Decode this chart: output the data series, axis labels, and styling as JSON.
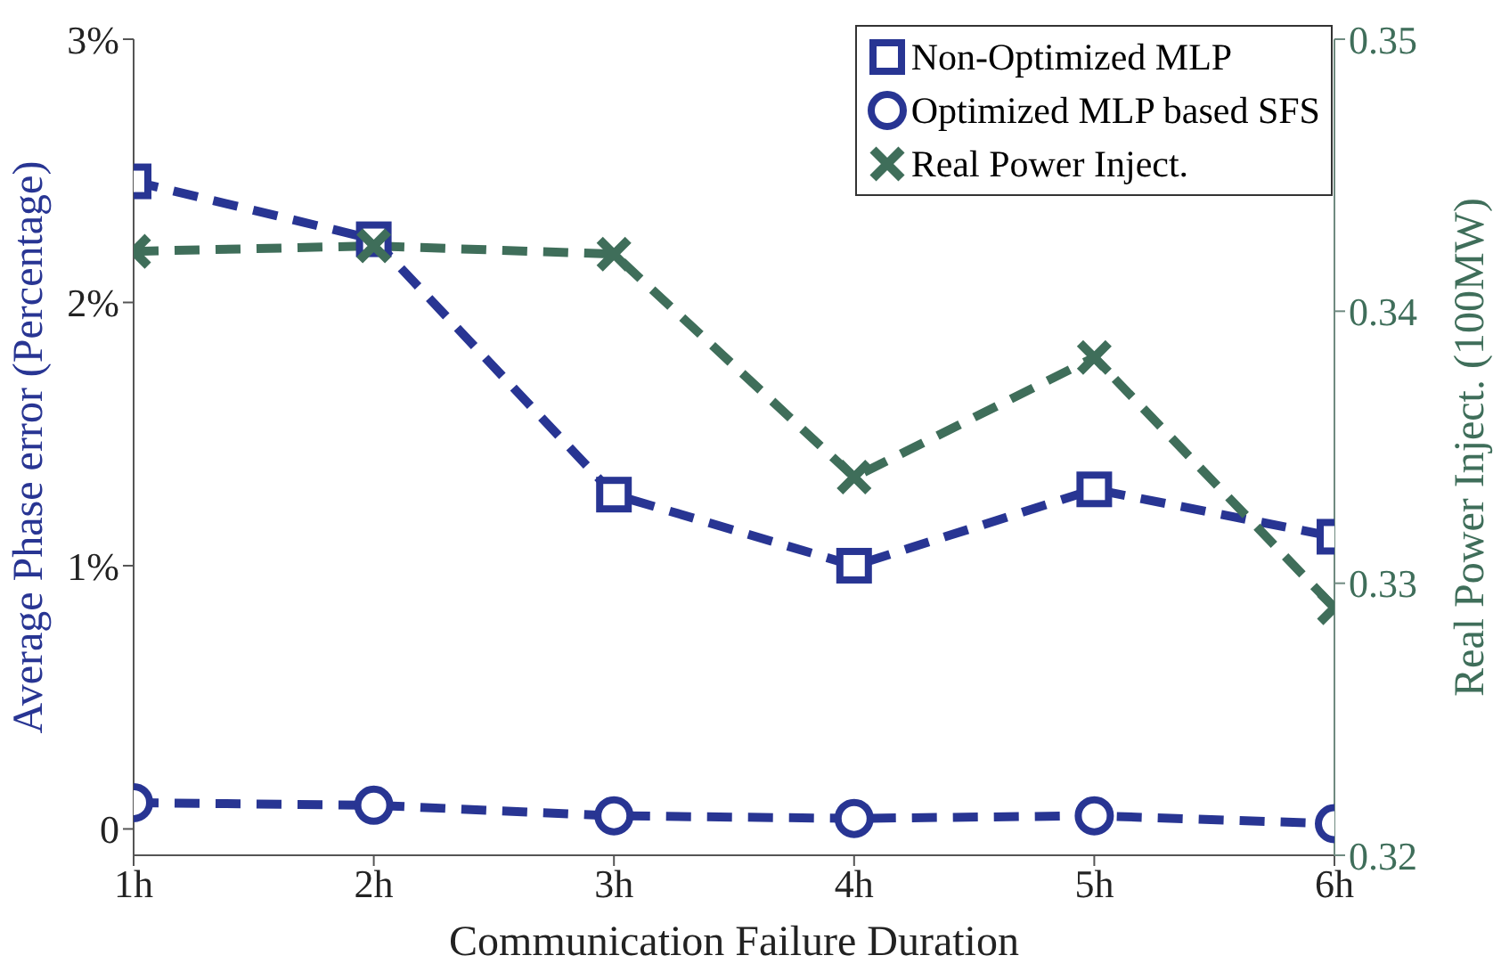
{
  "chart_data": {
    "type": "line",
    "xlabel": "Communication Failure Duration",
    "ylabel": "Average Phase error (Percentage)",
    "y2label": "Real Power Inject. (100MW)",
    "categories": [
      "1h",
      "2h",
      "3h",
      "4h",
      "5h",
      "6h"
    ],
    "series": [
      {
        "name": "Non-Optimized MLP",
        "color": "#283593",
        "marker": "square",
        "values": [
          2.46,
          2.24,
          1.27,
          1.0,
          1.29,
          1.11
        ]
      },
      {
        "name": "Optimized MLP based SFS",
        "color": "#283593",
        "marker": "circle",
        "values": [
          0.1,
          0.09,
          0.05,
          0.04,
          0.05,
          0.02
        ]
      },
      {
        "name": "Real Power Inject.",
        "color": "#3f6e5a",
        "marker": "cross",
        "axis": "y2",
        "values": [
          0.3422,
          0.3424,
          0.3421,
          0.3339,
          0.3383,
          0.3291
        ]
      }
    ],
    "ylim": [
      -0.1,
      3
    ],
    "yticks": [
      {
        "value": 0,
        "label": "0"
      },
      {
        "value": 1,
        "label": "1%"
      },
      {
        "value": 2,
        "label": "2%"
      },
      {
        "value": 3,
        "label": "3%"
      }
    ],
    "y2lim": [
      0.32,
      0.35
    ],
    "y2ticks": [
      {
        "value": 0.32,
        "label": "0.32"
      },
      {
        "value": 0.33,
        "label": "0.33"
      },
      {
        "value": 0.34,
        "label": "0.34"
      },
      {
        "value": 0.35,
        "label": "0.35"
      }
    ],
    "grid": false,
    "legend": "top right",
    "line_style": "dashed"
  }
}
